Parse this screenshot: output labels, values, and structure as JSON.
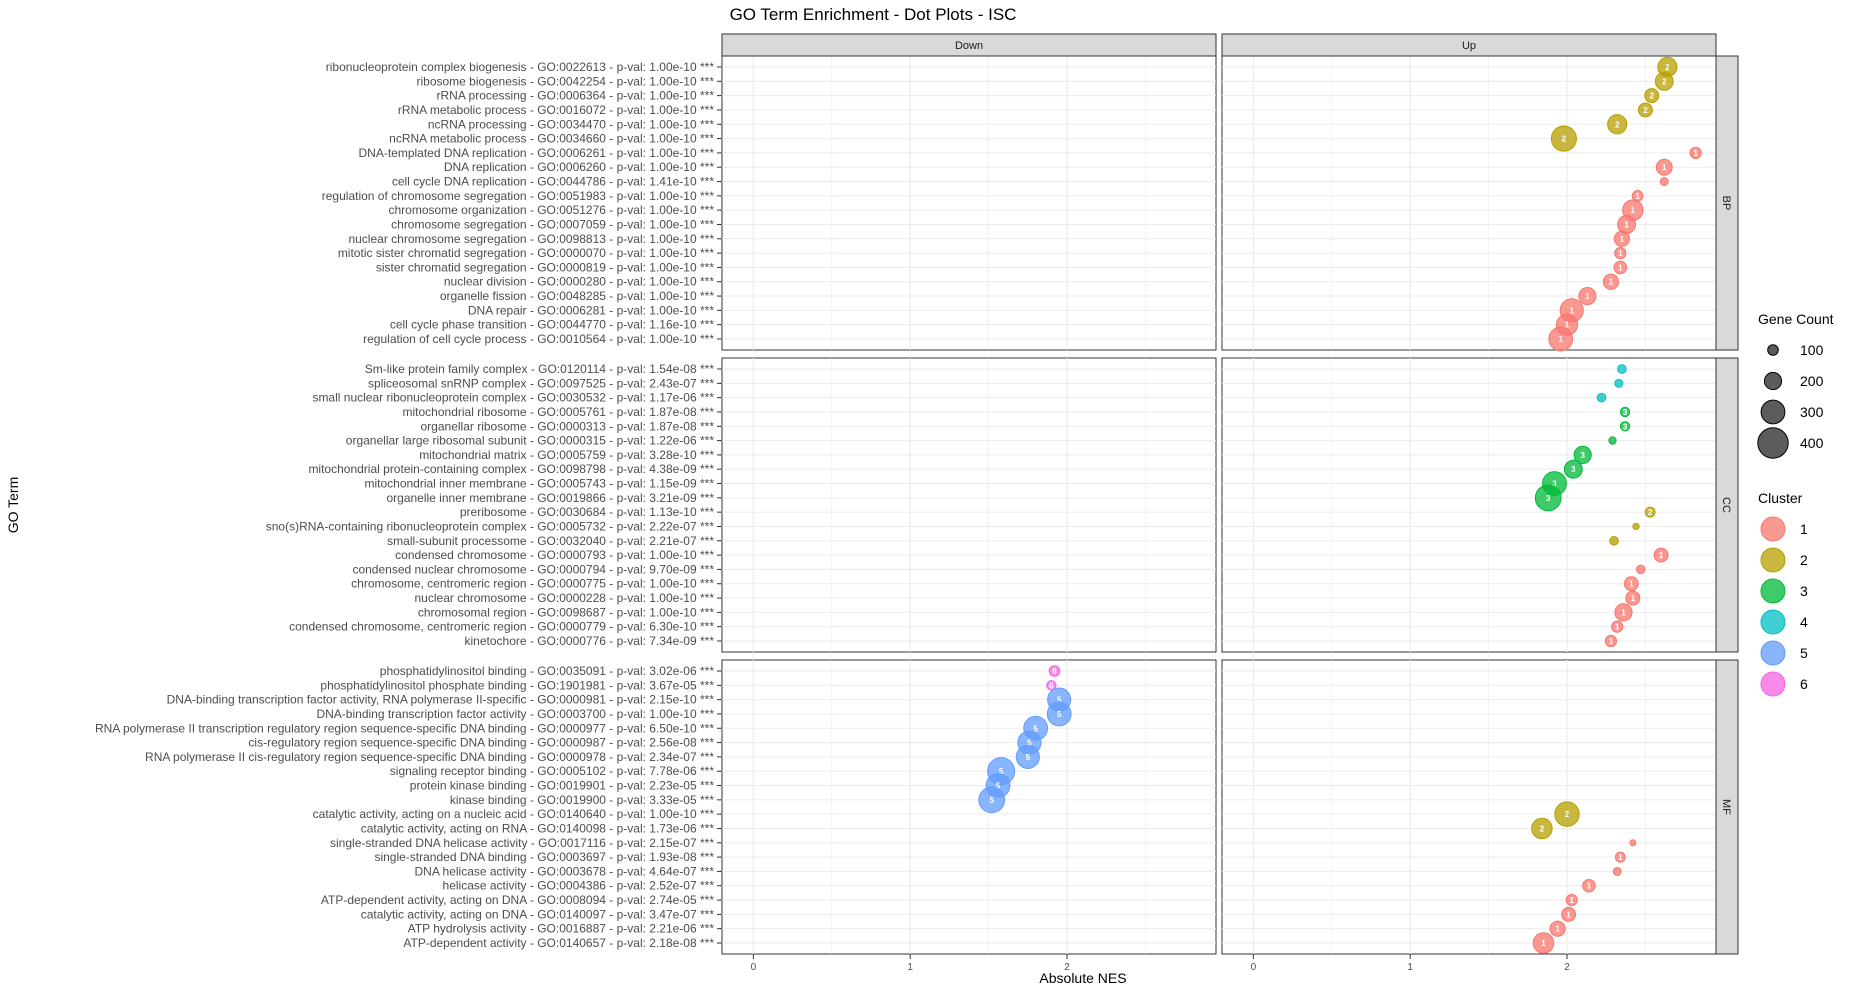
{
  "chart_data": {
    "type": "scatter",
    "title": "GO Term Enrichment - Dot Plots - ISC",
    "xlabel": "Absolute NES",
    "ylabel": "GO Term",
    "xlim": [
      -0.2,
      2.95
    ],
    "x_ticks": [
      0,
      1,
      2
    ],
    "columns": [
      "Down",
      "Up"
    ],
    "rows": [
      "BP",
      "CC",
      "MF"
    ],
    "grid": true,
    "legend_placement": "right",
    "size_legend": {
      "title": "Gene Count",
      "values": [
        100,
        200,
        300,
        400
      ]
    },
    "color_legend": {
      "title": "Cluster",
      "items": [
        {
          "label": "1",
          "color": "#F8766D"
        },
        {
          "label": "2",
          "color": "#B79F00"
        },
        {
          "label": "3",
          "color": "#00BA38"
        },
        {
          "label": "4",
          "color": "#00BFC4"
        },
        {
          "label": "5",
          "color": "#619CFF"
        },
        {
          "label": "6",
          "color": "#F564E3"
        }
      ]
    },
    "facets": [
      {
        "row": "BP",
        "terms": [
          {
            "label": "ribonucleoprotein complex biogenesis - GO:0022613 - p-val: 1.00e-10 ***",
            "col": "Up",
            "nes": 2.64,
            "count": 230,
            "cluster": "2"
          },
          {
            "label": "ribosome biogenesis - GO:0042254 - p-val: 1.00e-10 ***",
            "col": "Up",
            "nes": 2.62,
            "count": 210,
            "cluster": "2"
          },
          {
            "label": "rRNA processing - GO:0006364 - p-val: 1.00e-10 ***",
            "col": "Up",
            "nes": 2.54,
            "count": 150,
            "cluster": "2"
          },
          {
            "label": "rRNA metabolic process - GO:0016072 - p-val: 1.00e-10 ***",
            "col": "Up",
            "nes": 2.5,
            "count": 150,
            "cluster": "2"
          },
          {
            "label": "ncRNA processing - GO:0034470 - p-val: 1.00e-10 ***",
            "col": "Up",
            "nes": 2.32,
            "count": 230,
            "cluster": "2"
          },
          {
            "label": "ncRNA metabolic process - GO:0034660 - p-val: 1.00e-10 ***",
            "col": "Up",
            "nes": 1.98,
            "count": 320,
            "cluster": "2"
          },
          {
            "label": "DNA-templated DNA replication - GO:0006261 - p-val: 1.00e-10 ***",
            "col": "Up",
            "nes": 2.82,
            "count": 110,
            "cluster": "1"
          },
          {
            "label": "DNA replication - GO:0006260 - p-val: 1.00e-10 ***",
            "col": "Up",
            "nes": 2.62,
            "count": 180,
            "cluster": "1"
          },
          {
            "label": "cell cycle DNA replication - GO:0044786 - p-val: 1.41e-10 ***",
            "col": "Up",
            "nes": 2.62,
            "count": 60,
            "cluster": "1"
          },
          {
            "label": "regulation of chromosome segregation - GO:0051983 - p-val: 1.00e-10 ***",
            "col": "Up",
            "nes": 2.45,
            "count": 100,
            "cluster": "1"
          },
          {
            "label": "chromosome organization - GO:0051276 - p-val: 1.00e-10 ***",
            "col": "Up",
            "nes": 2.42,
            "count": 250,
            "cluster": "1"
          },
          {
            "label": "chromosome segregation - GO:0007059 - p-val: 1.00e-10 ***",
            "col": "Up",
            "nes": 2.38,
            "count": 210,
            "cluster": "1"
          },
          {
            "label": "nuclear chromosome segregation - GO:0098813 - p-val: 1.00e-10 ***",
            "col": "Up",
            "nes": 2.35,
            "count": 170,
            "cluster": "1"
          },
          {
            "label": "mitotic sister chromatid segregation - GO:0000070 - p-val: 1.00e-10 ***",
            "col": "Up",
            "nes": 2.34,
            "count": 110,
            "cluster": "1"
          },
          {
            "label": "sister chromatid segregation - GO:0000819 - p-val: 1.00e-10 ***",
            "col": "Up",
            "nes": 2.34,
            "count": 130,
            "cluster": "1"
          },
          {
            "label": "nuclear division - GO:0000280 - p-val: 1.00e-10 ***",
            "col": "Up",
            "nes": 2.28,
            "count": 170,
            "cluster": "1"
          },
          {
            "label": "organelle fission - GO:0048285 - p-val: 1.00e-10 ***",
            "col": "Up",
            "nes": 2.13,
            "count": 200,
            "cluster": "1"
          },
          {
            "label": "DNA repair - GO:0006281 - p-val: 1.00e-10 ***",
            "col": "Up",
            "nes": 2.03,
            "count": 290,
            "cluster": "1"
          },
          {
            "label": "cell cycle phase transition - GO:0044770 - p-val: 1.16e-10 ***",
            "col": "Up",
            "nes": 2.0,
            "count": 260,
            "cluster": "1"
          },
          {
            "label": "regulation of cell cycle process - GO:0010564 - p-val: 1.00e-10 ***",
            "col": "Up",
            "nes": 1.96,
            "count": 300,
            "cluster": "1"
          }
        ]
      },
      {
        "row": "CC",
        "terms": [
          {
            "label": "Sm-like protein family complex - GO:0120114 - p-val: 1.54e-08 ***",
            "col": "Up",
            "nes": 2.35,
            "count": 70,
            "cluster": "4"
          },
          {
            "label": "spliceosomal snRNP complex - GO:0097525 - p-val: 2.43e-07 ***",
            "col": "Up",
            "nes": 2.33,
            "count": 60,
            "cluster": "4"
          },
          {
            "label": "small nuclear ribonucleoprotein complex - GO:0030532 - p-val: 1.17e-06 ***",
            "col": "Up",
            "nes": 2.22,
            "count": 70,
            "cluster": "4"
          },
          {
            "label": "mitochondrial ribosome - GO:0005761 - p-val: 1.87e-08 ***",
            "col": "Up",
            "nes": 2.37,
            "count": 80,
            "cluster": "3"
          },
          {
            "label": "organellar ribosome - GO:0000313 - p-val: 1.87e-08 ***",
            "col": "Up",
            "nes": 2.37,
            "count": 80,
            "cluster": "3"
          },
          {
            "label": "organellar large ribosomal subunit - GO:0000315 - p-val: 1.22e-06 ***",
            "col": "Up",
            "nes": 2.29,
            "count": 50,
            "cluster": "3"
          },
          {
            "label": "mitochondrial matrix - GO:0005759 - p-val: 3.28e-10 ***",
            "col": "Up",
            "nes": 2.1,
            "count": 200,
            "cluster": "3"
          },
          {
            "label": "mitochondrial protein-containing complex - GO:0098798 - p-val: 4.38e-09 ***",
            "col": "Up",
            "nes": 2.04,
            "count": 210,
            "cluster": "3"
          },
          {
            "label": "mitochondrial inner membrane - GO:0005743 - p-val: 1.15e-09 ***",
            "col": "Up",
            "nes": 1.92,
            "count": 300,
            "cluster": "3"
          },
          {
            "label": "organelle inner membrane - GO:0019866 - p-val: 3.21e-09 ***",
            "col": "Up",
            "nes": 1.88,
            "count": 330,
            "cluster": "3"
          },
          {
            "label": "preribosome - GO:0030684 - p-val: 1.13e-10 ***",
            "col": "Up",
            "nes": 2.53,
            "count": 90,
            "cluster": "2"
          },
          {
            "label": "sno(s)RNA-containing ribonucleoprotein complex - GO:0005732 - p-val: 2.22e-07 ***",
            "col": "Up",
            "nes": 2.44,
            "count": 35,
            "cluster": "2"
          },
          {
            "label": "small-subunit processome - GO:0032040 - p-val: 2.21e-07 ***",
            "col": "Up",
            "nes": 2.3,
            "count": 70,
            "cluster": "2"
          },
          {
            "label": "condensed chromosome - GO:0000793 - p-val: 1.00e-10 ***",
            "col": "Up",
            "nes": 2.6,
            "count": 150,
            "cluster": "1"
          },
          {
            "label": "condensed nuclear chromosome - GO:0000794 - p-val: 9.70e-09 ***",
            "col": "Up",
            "nes": 2.47,
            "count": 70,
            "cluster": "1"
          },
          {
            "label": "chromosome, centromeric region - GO:0000775 - p-val: 1.00e-10 ***",
            "col": "Up",
            "nes": 2.41,
            "count": 150,
            "cluster": "1"
          },
          {
            "label": "nuclear chromosome - GO:0000228 - p-val: 1.00e-10 ***",
            "col": "Up",
            "nes": 2.42,
            "count": 150,
            "cluster": "1"
          },
          {
            "label": "chromosomal region - GO:0098687 - p-val: 1.00e-10 ***",
            "col": "Up",
            "nes": 2.36,
            "count": 200,
            "cluster": "1"
          },
          {
            "label": "condensed chromosome, centromeric region - GO:0000779 - p-val: 6.30e-10 ***",
            "col": "Up",
            "nes": 2.32,
            "count": 110,
            "cluster": "1"
          },
          {
            "label": "kinetochore - GO:0000776 - p-val: 7.34e-09 ***",
            "col": "Up",
            "nes": 2.28,
            "count": 110,
            "cluster": "1"
          }
        ]
      },
      {
        "row": "MF",
        "terms": [
          {
            "label": "phosphatidylinositol binding - GO:0035091 - p-val: 3.02e-06 ***",
            "col": "Down",
            "nes": 1.92,
            "count": 100,
            "cluster": "6"
          },
          {
            "label": "phosphatidylinositol phosphate binding - GO:1901981 - p-val: 3.67e-05 ***",
            "col": "Down",
            "nes": 1.9,
            "count": 80,
            "cluster": "6"
          },
          {
            "label": "DNA-binding transcription factor activity, RNA polymerase II-specific - GO:0000981 - p-val: 2.15e-10 ***",
            "col": "Down",
            "nes": 1.95,
            "count": 290,
            "cluster": "5"
          },
          {
            "label": "DNA-binding transcription factor activity - GO:0003700 - p-val: 1.00e-10 ***",
            "col": "Down",
            "nes": 1.95,
            "count": 300,
            "cluster": "5"
          },
          {
            "label": "RNA polymerase II transcription regulatory region sequence-specific DNA binding - GO:0000977 - p-val: 6.50e-10 ***",
            "col": "Down",
            "nes": 1.8,
            "count": 300,
            "cluster": "5"
          },
          {
            "label": "cis-regulatory region sequence-specific DNA binding - GO:0000987 - p-val: 2.56e-08 ***",
            "col": "Down",
            "nes": 1.76,
            "count": 290,
            "cluster": "5"
          },
          {
            "label": "RNA polymerase II cis-regulatory region sequence-specific DNA binding - GO:0000978 - p-val: 2.34e-07 ***",
            "col": "Down",
            "nes": 1.75,
            "count": 290,
            "cluster": "5"
          },
          {
            "label": "signaling receptor binding - GO:0005102 - p-val: 7.78e-06 ***",
            "col": "Down",
            "nes": 1.58,
            "count": 350,
            "cluster": "5"
          },
          {
            "label": "protein kinase binding - GO:0019901 - p-val: 2.23e-05 ***",
            "col": "Down",
            "nes": 1.56,
            "count": 300,
            "cluster": "5"
          },
          {
            "label": "kinase binding - GO:0019900 - p-val: 3.33e-05 ***",
            "col": "Down",
            "nes": 1.52,
            "count": 330,
            "cluster": "5"
          },
          {
            "label": "catalytic activity, acting on a nucleic acid - GO:0140640 - p-val: 1.00e-10 ***",
            "col": "Up",
            "nes": 2.0,
            "count": 310,
            "cluster": "2"
          },
          {
            "label": "catalytic activity, acting on RNA - GO:0140098 - p-val: 1.73e-06 ***",
            "col": "Up",
            "nes": 1.84,
            "count": 250,
            "cluster": "2"
          },
          {
            "label": "single-stranded DNA helicase activity - GO:0017116 - p-val: 2.15e-07 ***",
            "col": "Up",
            "nes": 2.42,
            "count": 30,
            "cluster": "1"
          },
          {
            "label": "single-stranded DNA binding - GO:0003697 - p-val: 1.93e-08 ***",
            "col": "Up",
            "nes": 2.34,
            "count": 90,
            "cluster": "1"
          },
          {
            "label": "DNA helicase activity - GO:0003678 - p-val: 4.64e-07 ***",
            "col": "Up",
            "nes": 2.32,
            "count": 60,
            "cluster": "1"
          },
          {
            "label": "helicase activity - GO:0004386 - p-val: 2.52e-07 ***",
            "col": "Up",
            "nes": 2.14,
            "count": 130,
            "cluster": "1"
          },
          {
            "label": "ATP-dependent activity, acting on DNA - GO:0008094 - p-val: 2.74e-05 ***",
            "col": "Up",
            "nes": 2.03,
            "count": 110,
            "cluster": "1"
          },
          {
            "label": "catalytic activity, acting on DNA - GO:0140097 - p-val: 3.47e-07 ***",
            "col": "Up",
            "nes": 2.01,
            "count": 150,
            "cluster": "1"
          },
          {
            "label": "ATP hydrolysis activity - GO:0016887 - p-val: 2.21e-06 ***",
            "col": "Up",
            "nes": 1.94,
            "count": 170,
            "cluster": "1"
          },
          {
            "label": "ATP-dependent activity - GO:0140657 - p-val: 2.18e-08 ***",
            "col": "Up",
            "nes": 1.85,
            "count": 250,
            "cluster": "1"
          }
        ]
      }
    ]
  }
}
